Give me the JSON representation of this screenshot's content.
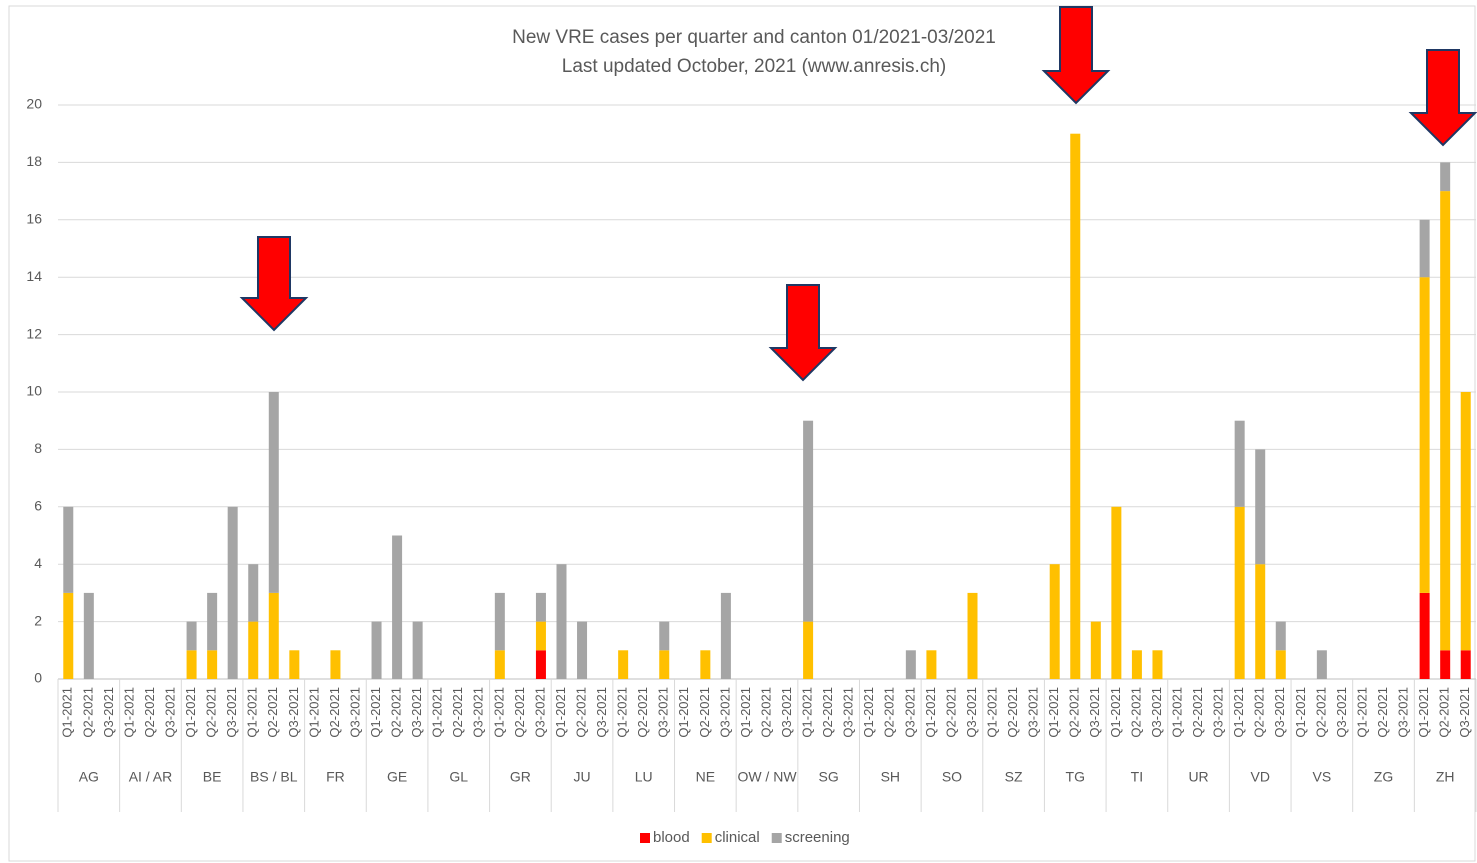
{
  "chart_data": {
    "type": "stacked_bar",
    "title": "New VRE cases per quarter and canton 01/2021-03/2021",
    "subtitle": "Last updated October, 2021 (www.anresis.ch)",
    "groups": [
      "AG",
      "AI / AR",
      "BE",
      "BS / BL",
      "FR",
      "GE",
      "GL",
      "GR",
      "JU",
      "LU",
      "NE",
      "OW / NW",
      "SG",
      "SH",
      "SO",
      "SZ",
      "TG",
      "TI",
      "UR",
      "VD",
      "VS",
      "ZG",
      "ZH"
    ],
    "categories": [
      "Q1-2021",
      "Q2-2021",
      "Q3-2021",
      "Q1-2021",
      "Q2-2021",
      "Q3-2021",
      "Q1-2021",
      "Q2-2021",
      "Q3-2021",
      "Q1-2021",
      "Q2-2021",
      "Q3-2021",
      "Q1-2021",
      "Q2-2021",
      "Q3-2021",
      "Q1-2021",
      "Q2-2021",
      "Q3-2021",
      "Q1-2021",
      "Q2-2021",
      "Q3-2021",
      "Q1-2021",
      "Q2-2021",
      "Q3-2021",
      "Q1-2021",
      "Q2-2021",
      "Q3-2021",
      "Q1-2021",
      "Q2-2021",
      "Q3-2021",
      "Q1-2021",
      "Q2-2021",
      "Q3-2021",
      "Q1-2021",
      "Q2-2021",
      "Q3-2021",
      "Q1-2021",
      "Q2-2021",
      "Q3-2021",
      "Q1-2021",
      "Q2-2021",
      "Q3-2021",
      "Q1-2021",
      "Q2-2021",
      "Q3-2021",
      "Q1-2021",
      "Q2-2021",
      "Q3-2021",
      "Q1-2021",
      "Q2-2021",
      "Q3-2021",
      "Q1-2021",
      "Q2-2021",
      "Q3-2021",
      "Q1-2021",
      "Q2-2021",
      "Q3-2021",
      "Q1-2021",
      "Q2-2021",
      "Q3-2021",
      "Q1-2021",
      "Q2-2021",
      "Q3-2021",
      "Q1-2021",
      "Q2-2021",
      "Q3-2021",
      "Q1-2021",
      "Q2-2021",
      "Q3-2021"
    ],
    "series": [
      {
        "name": "blood",
        "color": "#ff0000",
        "values": [
          0,
          0,
          0,
          0,
          0,
          0,
          0,
          0,
          0,
          0,
          0,
          0,
          0,
          0,
          0,
          0,
          0,
          0,
          0,
          0,
          0,
          0,
          0,
          1,
          0,
          0,
          0,
          0,
          0,
          0,
          0,
          0,
          0,
          0,
          0,
          0,
          0,
          0,
          0,
          0,
          0,
          0,
          0,
          0,
          0,
          0,
          0,
          0,
          0,
          0,
          0,
          0,
          0,
          0,
          0,
          0,
          0,
          0,
          0,
          0,
          0,
          0,
          0,
          0,
          0,
          0,
          3,
          1,
          1
        ]
      },
      {
        "name": "clinical",
        "color": "#ffc000",
        "values": [
          3,
          0,
          0,
          0,
          0,
          0,
          1,
          1,
          0,
          2,
          3,
          1,
          0,
          1,
          0,
          0,
          0,
          0,
          0,
          0,
          0,
          1,
          0,
          1,
          0,
          0,
          0,
          1,
          0,
          1,
          0,
          1,
          0,
          0,
          0,
          0,
          2,
          0,
          0,
          0,
          0,
          0,
          1,
          0,
          3,
          0,
          0,
          0,
          4,
          19,
          2,
          6,
          1,
          1,
          0,
          0,
          0,
          6,
          4,
          1,
          0,
          0,
          0,
          0,
          0,
          0,
          11,
          16,
          9
        ]
      },
      {
        "name": "screening",
        "color": "#a5a5a5",
        "values": [
          3,
          3,
          0,
          0,
          0,
          0,
          1,
          2,
          6,
          2,
          7,
          0,
          0,
          0,
          0,
          2,
          5,
          2,
          0,
          0,
          0,
          2,
          0,
          1,
          4,
          2,
          0,
          0,
          0,
          1,
          0,
          0,
          3,
          0,
          0,
          0,
          7,
          0,
          0,
          0,
          0,
          1,
          0,
          0,
          0,
          0,
          0,
          0,
          0,
          0,
          0,
          0,
          0,
          0,
          0,
          0,
          0,
          3,
          4,
          1,
          0,
          1,
          0,
          0,
          0,
          0,
          2,
          1,
          0
        ]
      }
    ],
    "ylim": [
      0,
      20
    ],
    "yticks": [
      0,
      2,
      4,
      6,
      8,
      10,
      12,
      14,
      16,
      18,
      20
    ],
    "grid": true,
    "legend": "bottom"
  }
}
